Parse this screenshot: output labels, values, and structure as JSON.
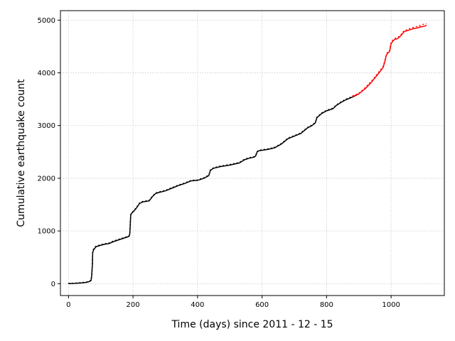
{
  "chart_data": {
    "type": "line",
    "title": "",
    "xlabel": "Time (days) since 2011 - 12 - 15",
    "ylabel": "Cumulative earthquake count",
    "xlim": [
      -25,
      1165
    ],
    "ylim": [
      -225,
      5180
    ],
    "xticks": [
      0,
      200,
      400,
      600,
      800,
      1000
    ],
    "yticks": [
      0,
      1000,
      2000,
      3000,
      4000,
      5000
    ],
    "grid": true,
    "legend": "none",
    "colors": {
      "observed": "#000000",
      "forecast": "#ff0000"
    },
    "series": [
      {
        "style": "solid",
        "color": "#000000",
        "x": [
          0,
          20,
          40,
          55,
          65,
          70,
          72,
          74,
          75,
          78,
          85,
          95,
          110,
          125,
          140,
          150,
          160,
          170,
          180,
          188,
          190,
          192,
          193,
          195,
          200,
          210,
          220,
          230,
          250,
          260,
          270,
          280,
          300,
          320,
          340,
          360,
          380,
          400,
          420,
          435,
          440,
          450,
          470,
          500,
          530,
          545,
          560,
          575,
          580,
          585,
          590,
          620,
          640,
          660,
          670,
          680,
          700,
          720,
          740,
          755,
          765,
          770,
          785,
          800,
          820,
          830,
          845,
          860,
          880,
          900
        ],
        "y": [
          0,
          5,
          15,
          25,
          40,
          60,
          150,
          350,
          590,
          640,
          700,
          720,
          745,
          760,
          800,
          820,
          840,
          860,
          880,
          900,
          950,
          1200,
          1300,
          1330,
          1360,
          1430,
          1520,
          1550,
          1570,
          1650,
          1710,
          1730,
          1760,
          1810,
          1860,
          1900,
          1950,
          1960,
          2000,
          2050,
          2150,
          2190,
          2220,
          2250,
          2290,
          2350,
          2380,
          2400,
          2420,
          2500,
          2520,
          2550,
          2580,
          2650,
          2700,
          2750,
          2800,
          2850,
          2950,
          3000,
          3050,
          3150,
          3230,
          3280,
          3320,
          3380,
          3440,
          3490,
          3540,
          3600
        ]
      },
      {
        "style": "dashed",
        "color": "#000000",
        "x": [
          0,
          20,
          40,
          55,
          65,
          70,
          72,
          74,
          75,
          78,
          85,
          95,
          110,
          125,
          140,
          150,
          160,
          170,
          180,
          188,
          190,
          192,
          193,
          195,
          200,
          210,
          220,
          230,
          250,
          260,
          270,
          280,
          300,
          320,
          340,
          360,
          380,
          400,
          420,
          435,
          440,
          450,
          470,
          500,
          530,
          545,
          560,
          575,
          580,
          585,
          590,
          620,
          640,
          660,
          670,
          680,
          700,
          720,
          740,
          755,
          765,
          770,
          785,
          800,
          820,
          830,
          845,
          860,
          880,
          900
        ],
        "y": [
          5,
          10,
          20,
          30,
          45,
          70,
          170,
          370,
          610,
          660,
          710,
          730,
          755,
          770,
          810,
          830,
          850,
          870,
          890,
          910,
          970,
          1220,
          1310,
          1340,
          1370,
          1440,
          1530,
          1560,
          1580,
          1660,
          1720,
          1740,
          1770,
          1820,
          1870,
          1910,
          1960,
          1970,
          2010,
          2060,
          2160,
          2200,
          2230,
          2260,
          2300,
          2360,
          2390,
          2410,
          2430,
          2510,
          2530,
          2560,
          2590,
          2660,
          2710,
          2760,
          2810,
          2860,
          2960,
          3010,
          3060,
          3160,
          3240,
          3290,
          3330,
          3390,
          3450,
          3500,
          3550,
          3610
        ]
      },
      {
        "style": "solid",
        "color": "#ff0000",
        "x": [
          880,
          900,
          920,
          940,
          960,
          975,
          980,
          985,
          990,
          995,
          1000,
          1005,
          1010,
          1020,
          1030,
          1040,
          1050,
          1060,
          1070,
          1080,
          1090,
          1100,
          1110
        ],
        "y": [
          3550,
          3600,
          3700,
          3830,
          3980,
          4100,
          4200,
          4330,
          4380,
          4400,
          4550,
          4600,
          4630,
          4650,
          4700,
          4780,
          4800,
          4820,
          4840,
          4850,
          4870,
          4880,
          4900
        ]
      },
      {
        "style": "dashed",
        "color": "#ff0000",
        "x": [
          880,
          900,
          920,
          940,
          960,
          975,
          980,
          985,
          990,
          995,
          1000,
          1005,
          1010,
          1020,
          1030,
          1040,
          1050,
          1060,
          1070,
          1080,
          1090,
          1100,
          1110
        ],
        "y": [
          3560,
          3610,
          3720,
          3850,
          4000,
          4120,
          4220,
          4350,
          4400,
          4420,
          4570,
          4620,
          4650,
          4670,
          4720,
          4800,
          4820,
          4845,
          4865,
          4880,
          4900,
          4920,
          4930
        ]
      }
    ]
  }
}
